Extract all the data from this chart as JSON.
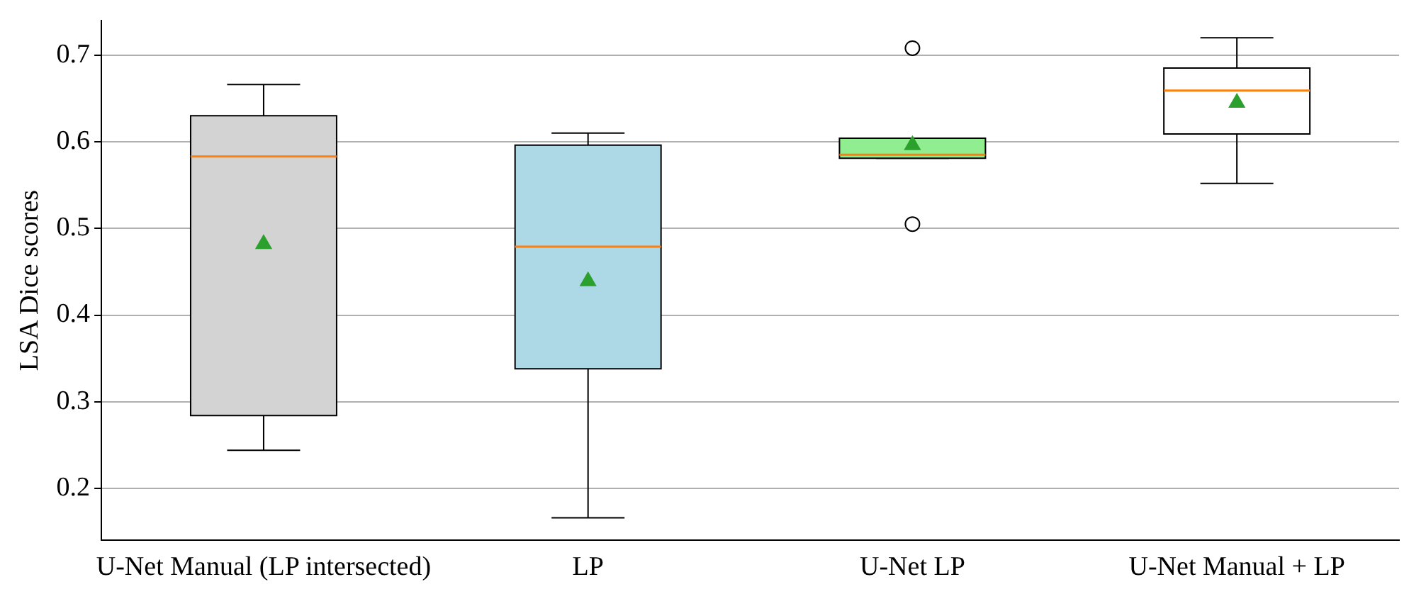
{
  "chart_data": {
    "type": "box",
    "ylabel": "LSA Dice scores",
    "categories": [
      "U-Net Manual (LP intersected)",
      "LP",
      "U-Net LP",
      "U-Net Manual + LP"
    ],
    "boxes": [
      {
        "low": 0.244,
        "q1": 0.284,
        "median": 0.583,
        "q3": 0.63,
        "high": 0.666,
        "mean": 0.482
      },
      {
        "low": 0.166,
        "q1": 0.338,
        "median": 0.479,
        "q3": 0.596,
        "high": 0.61,
        "mean": 0.439
      },
      {
        "low": 0.581,
        "q1": 0.581,
        "median": 0.585,
        "q3": 0.604,
        "high": 0.604,
        "mean": 0.596,
        "outliers": [
          0.708,
          0.505
        ]
      },
      {
        "low": 0.552,
        "q1": 0.609,
        "median": 0.659,
        "q3": 0.685,
        "high": 0.72,
        "mean": 0.645
      }
    ],
    "colors": [
      "#d3d3d3",
      "#add8e6",
      "#90ee90",
      "#ffffff"
    ],
    "ylim": [
      0.14,
      0.74
    ],
    "yticks": [
      0.2,
      0.3,
      0.4,
      0.5,
      0.6,
      0.7
    ],
    "grid": "y",
    "marker": "triangle",
    "legend": false
  }
}
